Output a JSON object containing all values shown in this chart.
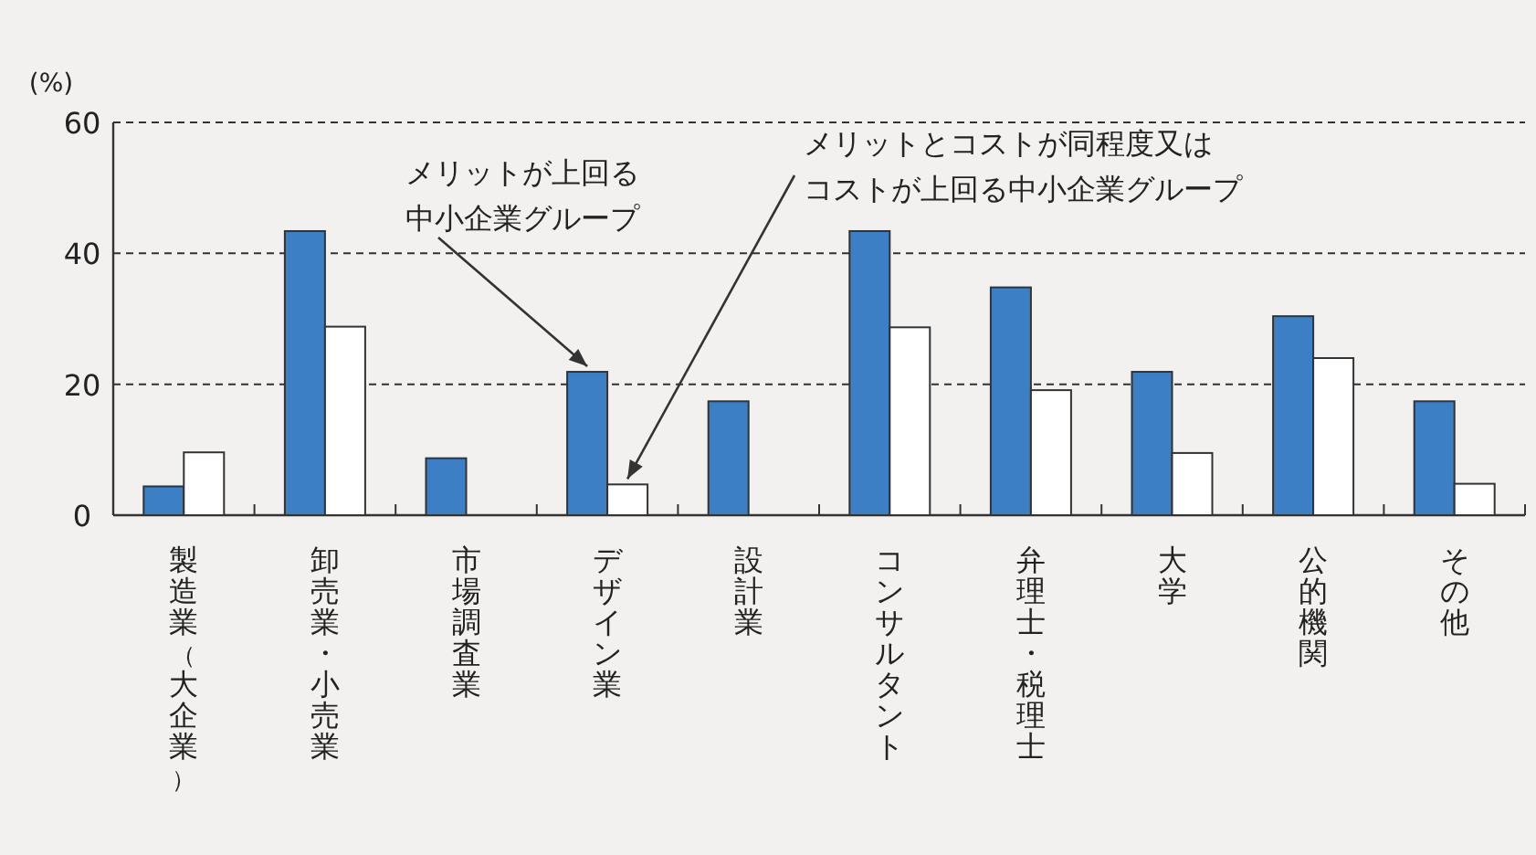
{
  "chart_data": {
    "type": "bar",
    "ylabel": "(%)",
    "categories": [
      "製造業（大企業）",
      "卸売業・小売業",
      "市場調査業",
      "デザイン業",
      "設計業",
      "コンサルタント",
      "弁理士・税理士",
      "大学",
      "公的機関",
      "その他"
    ],
    "series": [
      {
        "name": "メリットが上回る中小企業グループ",
        "color": "#3d7fc4",
        "values": [
          4.4,
          43.4,
          8.7,
          21.9,
          17.4,
          43.4,
          34.8,
          21.9,
          30.4,
          17.4
        ]
      },
      {
        "name": "メリットとコストが同程度又はコストが上回る中小企業グループ",
        "color": "#ffffff",
        "values": [
          9.6,
          28.8,
          0,
          4.7,
          0,
          28.7,
          19.1,
          9.5,
          24.0,
          4.8
        ]
      }
    ],
    "ylim": [
      0,
      60
    ],
    "yticks": [
      0,
      20,
      40,
      60
    ],
    "grid": "y"
  }
}
